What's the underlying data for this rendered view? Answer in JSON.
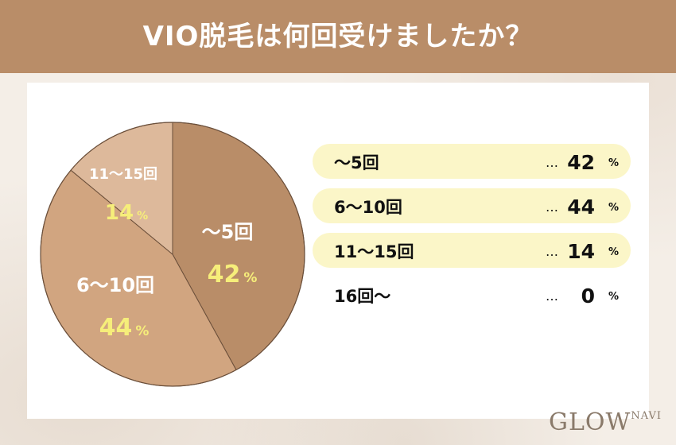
{
  "header": {
    "title": "VIO脱毛は何回受けましたか？"
  },
  "chart_data": {
    "type": "pie",
    "title": "VIO脱毛は何回受けましたか？",
    "categories": [
      "〜5回",
      "6〜10回",
      "11〜15回",
      "16回〜"
    ],
    "values": [
      42,
      44,
      14,
      0
    ],
    "unit": "%",
    "colors": [
      "#b98d68",
      "#d1a580",
      "#ddb99b",
      "#e9d5c2"
    ],
    "label_color": "#ffffff",
    "value_color": "#f6ee7a",
    "legend_highlight": "#fbf6c8",
    "legend_dots": "…",
    "legend_placement": "right"
  },
  "logo": {
    "main": "GLOW",
    "sub": "NAVI"
  }
}
